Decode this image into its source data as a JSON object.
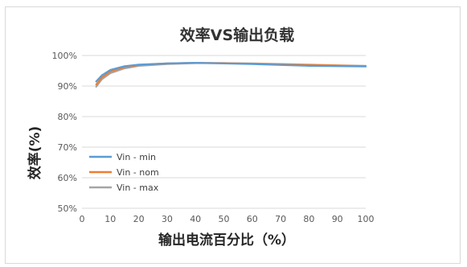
{
  "chart_data": {
    "type": "line",
    "title": "效率VS输出负载",
    "xlabel": "输出电流百分比（%）",
    "ylabel": "效率(%)",
    "xlim": [
      0,
      100
    ],
    "ylim": [
      50,
      100
    ],
    "x_ticks": [
      "0",
      "10",
      "20",
      "30",
      "40",
      "50",
      "60",
      "70",
      "80",
      "90",
      "100"
    ],
    "y_ticks": [
      "50%",
      "60%",
      "70%",
      "80%",
      "90%",
      "100%"
    ],
    "grid": true,
    "legend_position": "bottom-left",
    "series": [
      {
        "name": "Vin - min",
        "color": "#5b9bd5",
        "x": [
          5,
          7,
          10,
          15,
          20,
          30,
          40,
          50,
          60,
          70,
          80,
          90,
          100
        ],
        "y": [
          91.5,
          93.5,
          95.3,
          96.5,
          97.0,
          97.4,
          97.6,
          97.4,
          97.2,
          96.9,
          96.6,
          96.5,
          96.4
        ]
      },
      {
        "name": "Vin - nom",
        "color": "#ed7d31",
        "x": [
          5,
          7,
          10,
          15,
          20,
          30,
          40,
          50,
          60,
          70,
          80,
          90,
          100
        ],
        "y": [
          90.5,
          92.8,
          94.8,
          96.2,
          96.9,
          97.4,
          97.6,
          97.5,
          97.3,
          97.1,
          96.9,
          96.7,
          96.5
        ]
      },
      {
        "name": "Vin - max",
        "color": "#a5a5a5",
        "x": [
          5,
          7,
          10,
          15,
          20,
          30,
          40,
          50,
          60,
          70,
          80,
          90,
          100
        ],
        "y": [
          89.8,
          92.2,
          94.2,
          95.8,
          96.6,
          97.2,
          97.5,
          97.5,
          97.4,
          97.2,
          97.0,
          96.8,
          96.6
        ]
      }
    ]
  }
}
